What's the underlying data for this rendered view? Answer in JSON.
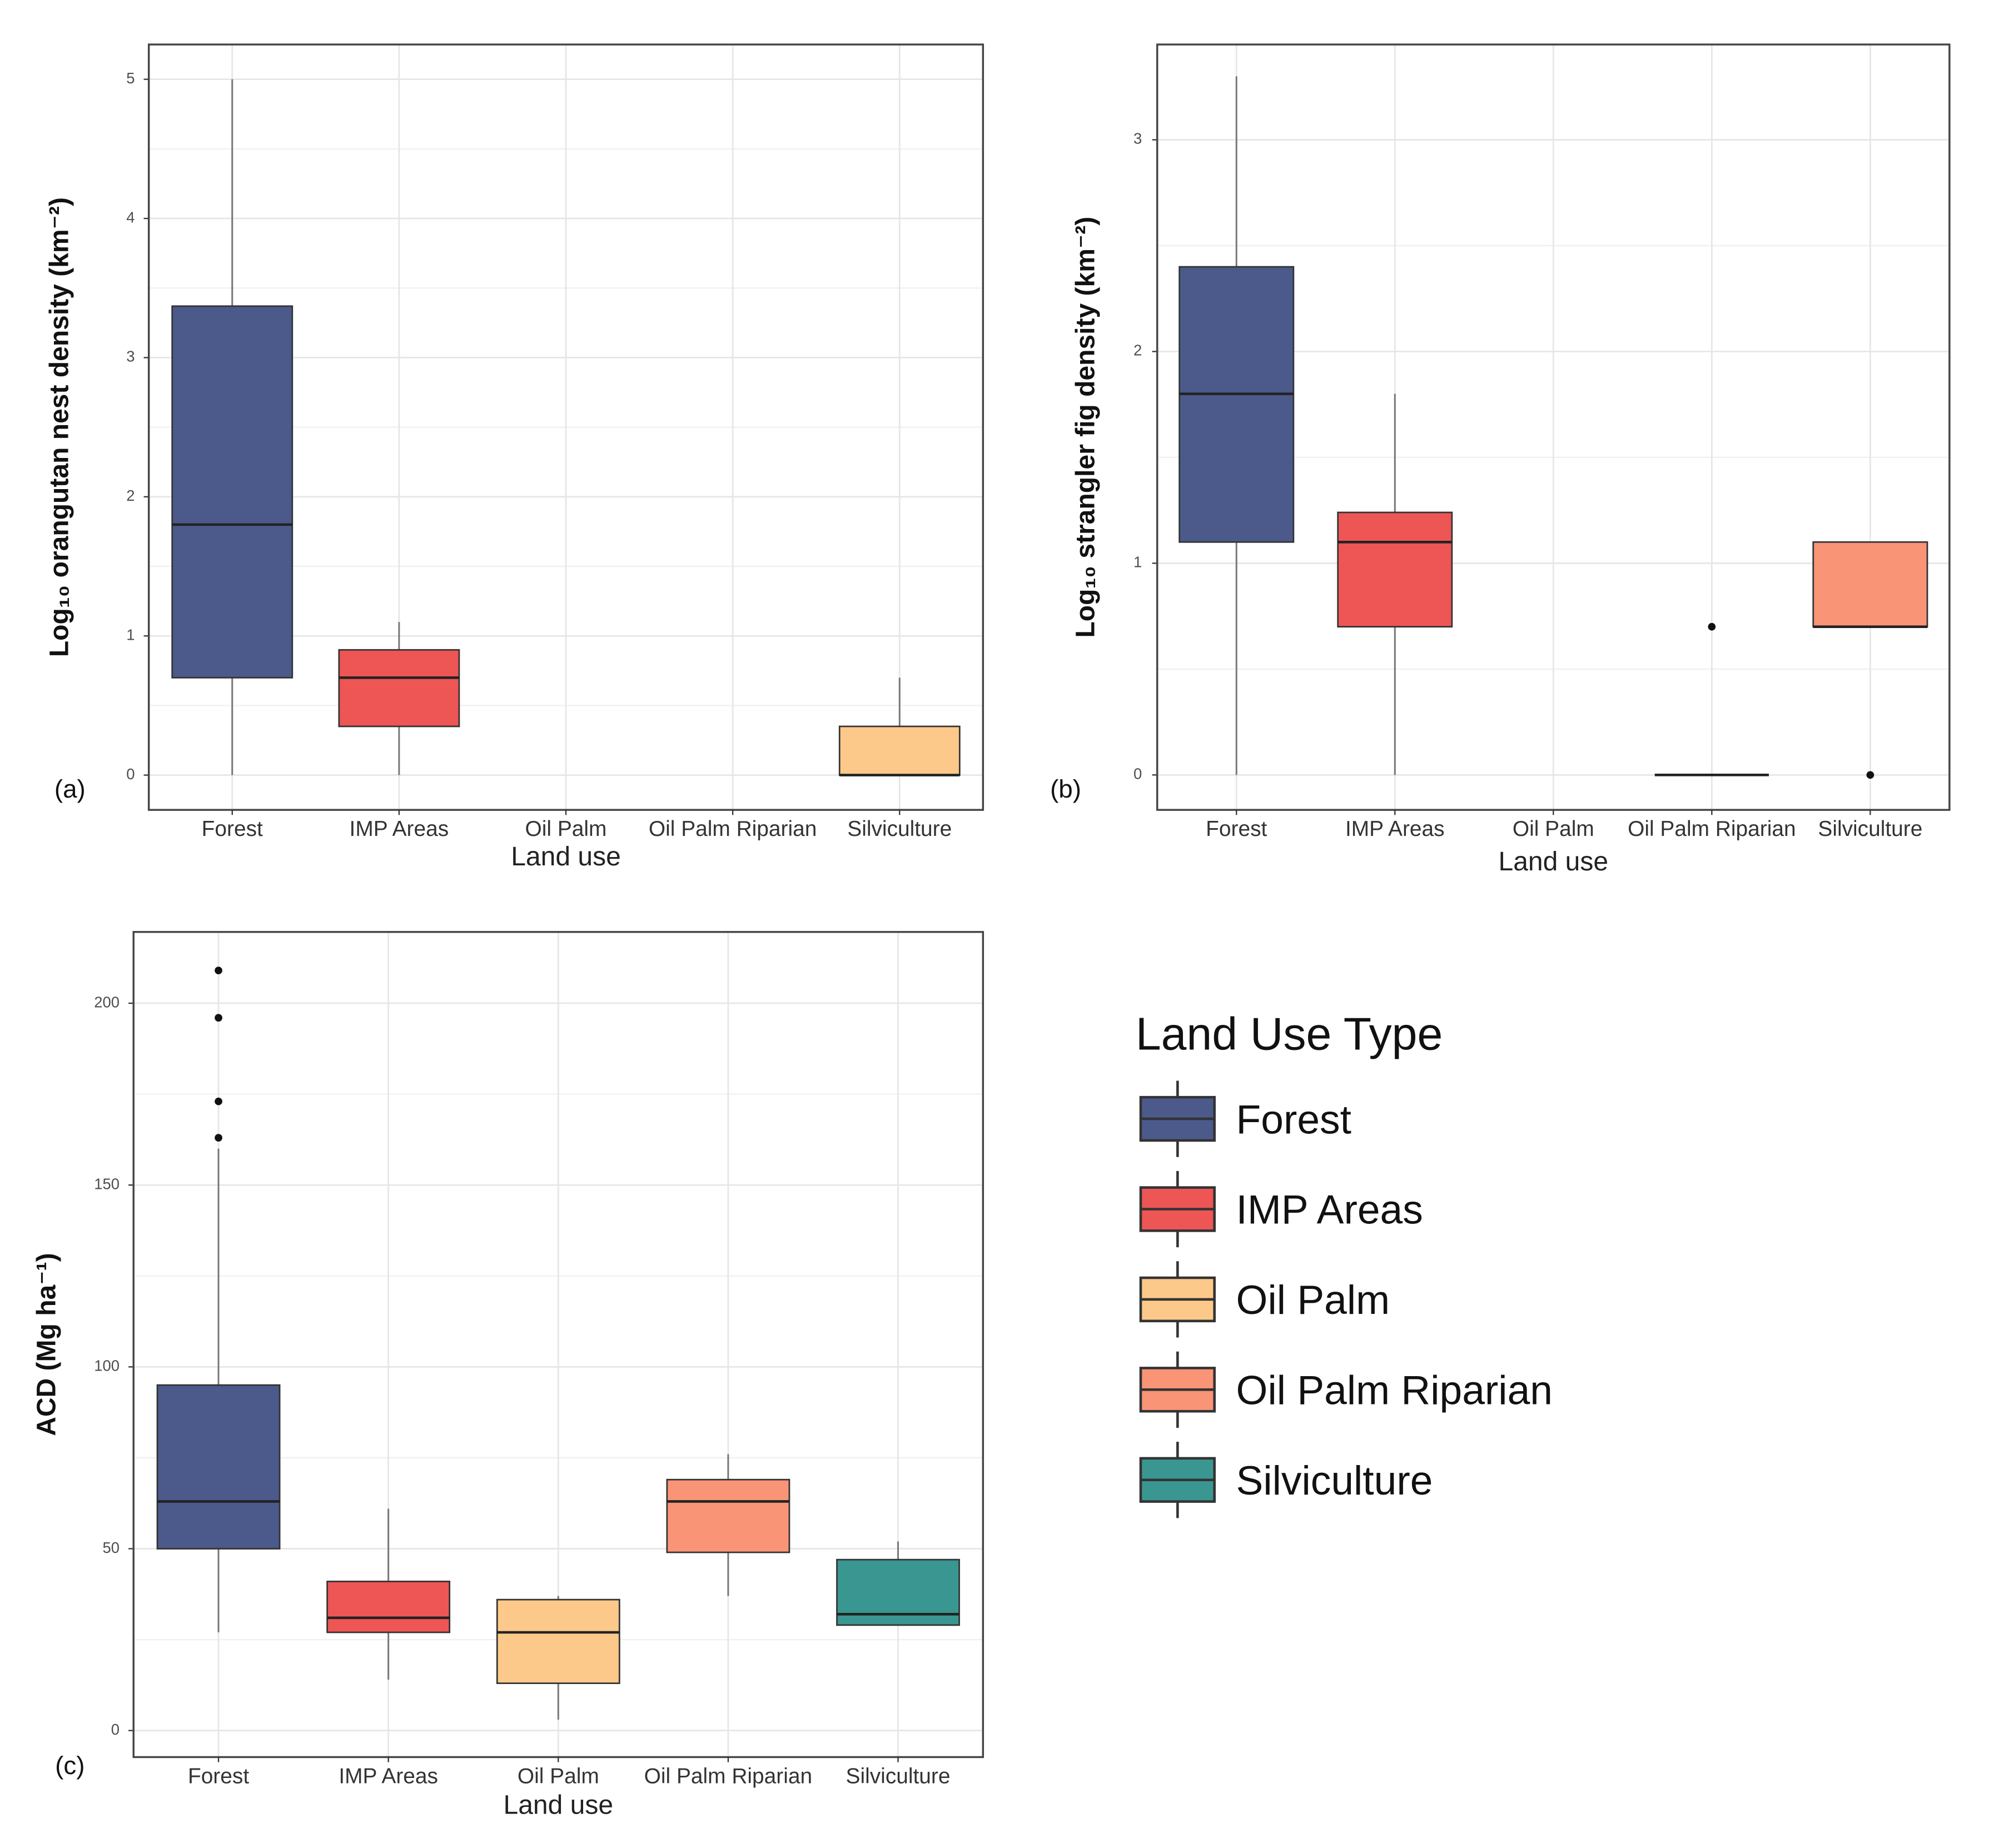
{
  "chart_data": [
    {
      "type": "box",
      "panel_label": "(a)",
      "xlabel": "Land use",
      "ylabel": "Log₁₀ orangutan nest density (km⁻²)",
      "categories": [
        "Forest",
        "IMP Areas",
        "Oil Palm",
        "Oil Palm Riparian",
        "Silviculture"
      ],
      "boxes": [
        {
          "color": "#4b5a8a",
          "min": 0,
          "q1": 0.7,
          "median": 1.8,
          "q3": 3.37,
          "max": 5,
          "outliers": []
        },
        {
          "color": "#ee5555",
          "min": 0,
          "q1": 0.35,
          "median": 0.7,
          "q3": 0.9,
          "max": 1.1,
          "outliers": []
        },
        null,
        null,
        {
          "color": "#fdc98a",
          "min": 0,
          "q1": 0,
          "median": 0,
          "q3": 0.35,
          "max": 0.7,
          "outliers": []
        }
      ],
      "ylim": [
        -0.25,
        5.25
      ],
      "yticks": [
        0,
        1,
        2,
        3,
        4,
        5
      ],
      "grid": true
    },
    {
      "type": "box",
      "panel_label": "(b)",
      "xlabel": "Land use",
      "ylabel": "Log₁₀ strangler fig density (km⁻²)",
      "categories": [
        "Forest",
        "IMP Areas",
        "Oil Palm",
        "Oil Palm Riparian",
        "Silviculture"
      ],
      "boxes": [
        {
          "color": "#4b5a8a",
          "min": 0,
          "q1": 1.1,
          "median": 1.8,
          "q3": 2.4,
          "max": 3.3,
          "outliers": []
        },
        {
          "color": "#ee5555",
          "min": 0,
          "q1": 0.7,
          "median": 1.1,
          "q3": 1.24,
          "max": 1.8,
          "outliers": []
        },
        null,
        {
          "color": "#555555",
          "min": 0,
          "q1": 0,
          "median": 0,
          "q3": 0,
          "max": 0,
          "outliers": [
            0.7
          ]
        },
        {
          "color": "#f99477",
          "min": 0.7,
          "q1": 0.7,
          "median": 0.7,
          "q3": 1.1,
          "max": 1.1,
          "outliers": [
            0
          ]
        }
      ],
      "ylim": [
        -0.165,
        3.45
      ],
      "yticks": [
        0,
        1,
        2,
        3
      ],
      "grid": true
    },
    {
      "type": "box",
      "panel_label": "(c)",
      "xlabel": "Land use",
      "ylabel": "ACD (Mg ha⁻¹)",
      "categories": [
        "Forest",
        "IMP Areas",
        "Oil Palm",
        "Oil Palm Riparian",
        "Silviculture"
      ],
      "boxes": [
        {
          "color": "#4b5a8a",
          "min": 27,
          "q1": 50,
          "median": 63,
          "q3": 95,
          "max": 160,
          "outliers": [
            163,
            173,
            196,
            209
          ]
        },
        {
          "color": "#ee5555",
          "min": 14,
          "q1": 27,
          "median": 31,
          "q3": 41,
          "max": 61,
          "outliers": []
        },
        {
          "color": "#fdc98a",
          "min": 3,
          "q1": 13,
          "median": 27,
          "q3": 36,
          "max": 37,
          "outliers": []
        },
        {
          "color": "#f99477",
          "min": 37,
          "q1": 49,
          "median": 63,
          "q3": 69,
          "max": 76,
          "outliers": []
        },
        {
          "color": "#3a9690",
          "min": 29,
          "q1": 29,
          "median": 32,
          "q3": 47,
          "max": 52,
          "outliers": []
        }
      ],
      "ylim": [
        -7.3,
        219.6
      ],
      "yticks": [
        0,
        50,
        100,
        150,
        200
      ],
      "grid": true,
      "legend": {
        "title": "Land Use Type",
        "entries": [
          {
            "name": "Forest",
            "color": "#4b5a8a"
          },
          {
            "name": "IMP Areas",
            "color": "#ee5555"
          },
          {
            "name": "Oil Palm",
            "color": "#fdc98a"
          },
          {
            "name": "Oil Palm Riparian",
            "color": "#f99477"
          },
          {
            "name": "Silviculture",
            "color": "#3a9690"
          }
        ]
      }
    }
  ]
}
